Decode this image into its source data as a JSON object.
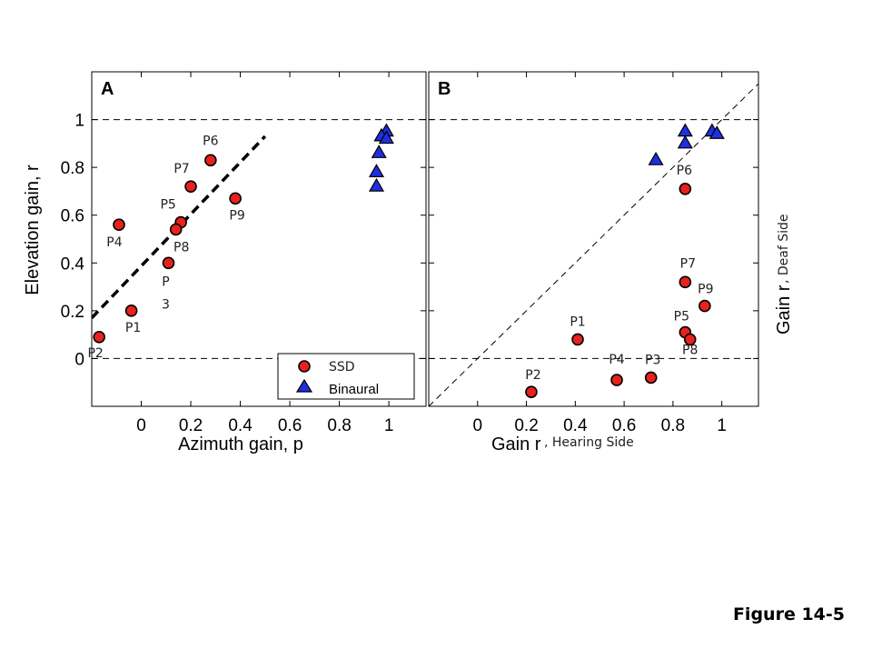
{
  "figure_label": "Figure 14-5",
  "colors": {
    "ssd": "#e8211c",
    "binaural": "#1f2fe0",
    "axis": "#000000"
  },
  "chart_data": [
    {
      "type": "scatter",
      "panel": "A",
      "xlabel": "Azimuth gain, p",
      "ylabel": "Elevation gain, r",
      "xlim": [
        -0.2,
        1.15
      ],
      "ylim": [
        -0.2,
        1.2
      ],
      "xticks": [
        "0",
        "0.2",
        "0.4",
        "0.6",
        "0.8",
        "1"
      ],
      "yticks": [
        "0",
        "0.2",
        "0.4",
        "0.6",
        "0.8",
        "1"
      ],
      "reference_lines": [
        {
          "kind": "horizontal-dashed",
          "y": 1
        },
        {
          "kind": "horizontal-dashed",
          "y": 0
        },
        {
          "kind": "bold-dashed-fit",
          "x": [
            -0.2,
            0.5
          ],
          "y": [
            0.17,
            0.93
          ]
        }
      ],
      "legend": {
        "position": "bottom-right",
        "entries": [
          "SSD",
          "Binaural"
        ]
      },
      "series": [
        {
          "name": "SSD",
          "marker": "circle",
          "points": [
            {
              "label": "P2",
              "x": -0.17,
              "y": 0.09
            },
            {
              "label": "P1",
              "x": -0.04,
              "y": 0.2
            },
            {
              "label": "P4",
              "x": -0.09,
              "y": 0.56
            },
            {
              "label": "P3",
              "x": 0.11,
              "y": 0.4
            },
            {
              "label": "P5",
              "x": 0.16,
              "y": 0.57
            },
            {
              "label": "P8",
              "x": 0.14,
              "y": 0.54
            },
            {
              "label": "P7",
              "x": 0.2,
              "y": 0.72
            },
            {
              "label": "P6",
              "x": 0.28,
              "y": 0.83
            },
            {
              "label": "P9",
              "x": 0.38,
              "y": 0.67
            }
          ]
        },
        {
          "name": "Binaural",
          "marker": "triangle",
          "points": [
            {
              "x": 0.99,
              "y": 0.95
            },
            {
              "x": 0.97,
              "y": 0.93
            },
            {
              "x": 0.99,
              "y": 0.92
            },
            {
              "x": 0.96,
              "y": 0.86
            },
            {
              "x": 0.95,
              "y": 0.78
            },
            {
              "x": 0.95,
              "y": 0.72
            }
          ]
        }
      ]
    },
    {
      "type": "scatter",
      "panel": "B",
      "xlabel": "Gain r",
      "xlabel_suffix": ", Hearing Side",
      "ylabel": "Gain r",
      "ylabel_suffix": ", Deaf Side",
      "xlim": [
        -0.2,
        1.15
      ],
      "ylim": [
        -0.2,
        1.2
      ],
      "xticks": [
        "0",
        "0.2",
        "0.4",
        "0.6",
        "0.8",
        "1"
      ],
      "reference_lines": [
        {
          "kind": "horizontal-dashed",
          "y": 1
        },
        {
          "kind": "horizontal-dashed",
          "y": 0
        },
        {
          "kind": "identity-dashed",
          "x": [
            -0.2,
            1.15
          ],
          "y": [
            -0.2,
            1.15
          ]
        }
      ],
      "series": [
        {
          "name": "SSD",
          "marker": "circle",
          "points": [
            {
              "label": "P2",
              "x": 0.22,
              "y": -0.14
            },
            {
              "label": "P1",
              "x": 0.41,
              "y": 0.08
            },
            {
              "label": "P4",
              "x": 0.57,
              "y": -0.09
            },
            {
              "label": "P3",
              "x": 0.71,
              "y": -0.08
            },
            {
              "label": "P6",
              "x": 0.85,
              "y": 0.71
            },
            {
              "label": "P7",
              "x": 0.85,
              "y": 0.32
            },
            {
              "label": "P9",
              "x": 0.93,
              "y": 0.22
            },
            {
              "label": "P5",
              "x": 0.85,
              "y": 0.11
            },
            {
              "label": "P8",
              "x": 0.87,
              "y": 0.08
            }
          ]
        },
        {
          "name": "Binaural",
          "marker": "triangle",
          "points": [
            {
              "x": 0.73,
              "y": 0.83
            },
            {
              "x": 0.85,
              "y": 0.95
            },
            {
              "x": 0.85,
              "y": 0.9
            },
            {
              "x": 0.96,
              "y": 0.95
            },
            {
              "x": 0.98,
              "y": 0.94
            }
          ]
        }
      ]
    }
  ]
}
